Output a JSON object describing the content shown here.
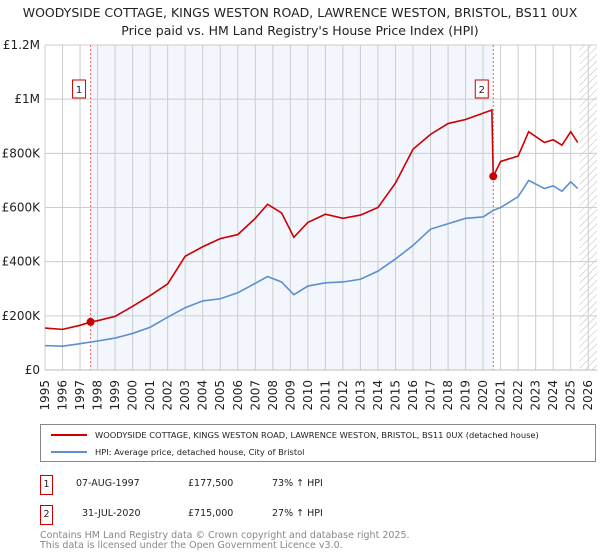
{
  "chart_data": {
    "type": "line",
    "title": "WOODYSIDE COTTAGE, KINGS WESTON ROAD, LAWRENCE WESTON, BRISTOL, BS11 0UX",
    "subtitle": "Price paid vs. HM Land Registry's House Price Index (HPI)",
    "xlim": [
      1995,
      2026
    ],
    "ylim": [
      0,
      1200000
    ],
    "x_ticks": [
      "1995",
      "1996",
      "1997",
      "1998",
      "1999",
      "2000",
      "2001",
      "2002",
      "2003",
      "2004",
      "2005",
      "2006",
      "2007",
      "2008",
      "2009",
      "2010",
      "2011",
      "2012",
      "2013",
      "2014",
      "2015",
      "2016",
      "2017",
      "2018",
      "2019",
      "2020",
      "2021",
      "2022",
      "2023",
      "2024",
      "2025",
      "2026"
    ],
    "y_ticks": [
      {
        "v": 0,
        "label": "£0"
      },
      {
        "v": 200000,
        "label": "£200K"
      },
      {
        "v": 400000,
        "label": "£400K"
      },
      {
        "v": 600000,
        "label": "£600K"
      },
      {
        "v": 800000,
        "label": "£800K"
      },
      {
        "v": 1000000,
        "label": "£1M"
      },
      {
        "v": 1200000,
        "label": "£1.2M"
      }
    ],
    "grid": true,
    "series": [
      {
        "name": "WOODYSIDE COTTAGE, KINGS WESTON ROAD, LAWRENCE WESTON, BRISTOL, BS11 0UX (detached house)",
        "color": "#cc0000",
        "x": [
          1995,
          1996,
          1997,
          1997.6,
          1998,
          1999,
          2000,
          2001,
          2002,
          2003,
          2004,
          2005,
          2006,
          2007,
          2007.7,
          2008.5,
          2009.2,
          2010,
          2011,
          2012,
          2013,
          2014,
          2015,
          2016,
          2017,
          2018,
          2019,
          2020.5,
          2020.58,
          2021,
          2022,
          2022.6,
          2023.5,
          2024,
          2024.5,
          2025,
          2025.4
        ],
        "y": [
          155000,
          150000,
          165000,
          177500,
          182000,
          198000,
          235000,
          275000,
          318000,
          420000,
          455000,
          485000,
          500000,
          560000,
          612000,
          580000,
          490000,
          545000,
          575000,
          560000,
          572000,
          600000,
          690000,
          815000,
          870000,
          910000,
          925000,
          960000,
          715000,
          770000,
          790000,
          880000,
          840000,
          850000,
          830000,
          880000,
          840000
        ]
      },
      {
        "name": "HPI: Average price, detached house, City of Bristol",
        "color": "#5b8fd0",
        "x": [
          1995,
          1996,
          1997,
          1998,
          1999,
          2000,
          2001,
          2002,
          2003,
          2004,
          2005,
          2006,
          2007,
          2007.7,
          2008.5,
          2009.2,
          2010,
          2011,
          2012,
          2013,
          2014,
          2015,
          2016,
          2017,
          2018,
          2019,
          2020,
          2020.6,
          2021,
          2022,
          2022.6,
          2023.5,
          2024,
          2024.5,
          2025,
          2025.4
        ],
        "y": [
          90000,
          88000,
          97000,
          107000,
          118000,
          135000,
          158000,
          195000,
          230000,
          255000,
          263000,
          285000,
          320000,
          345000,
          325000,
          278000,
          310000,
          322000,
          325000,
          335000,
          365000,
          410000,
          460000,
          520000,
          540000,
          560000,
          565000,
          590000,
          600000,
          640000,
          700000,
          670000,
          680000,
          660000,
          695000,
          670000
        ]
      }
    ],
    "annotations": [
      {
        "label": "1",
        "x": 1997.6,
        "y": 177500
      },
      {
        "label": "2",
        "x": 2020.58,
        "y": 715000
      }
    ]
  },
  "legend": {
    "red": "WOODYSIDE COTTAGE, KINGS WESTON ROAD, LAWRENCE WESTON, BRISTOL, BS11 0UX (detached house)",
    "blue": "HPI: Average price, detached house, City of Bristol"
  },
  "sales": [
    {
      "n": "1",
      "date": "07-AUG-1997",
      "price": "£177,500",
      "hpi": "73% ↑ HPI"
    },
    {
      "n": "2",
      "date": "31-JUL-2020",
      "price": "£715,000",
      "hpi": "27% ↑ HPI"
    }
  ],
  "footer": [
    "Contains HM Land Registry data © Crown copyright and database right 2025.",
    "This data is licensed under the Open Government Licence v3.0."
  ]
}
